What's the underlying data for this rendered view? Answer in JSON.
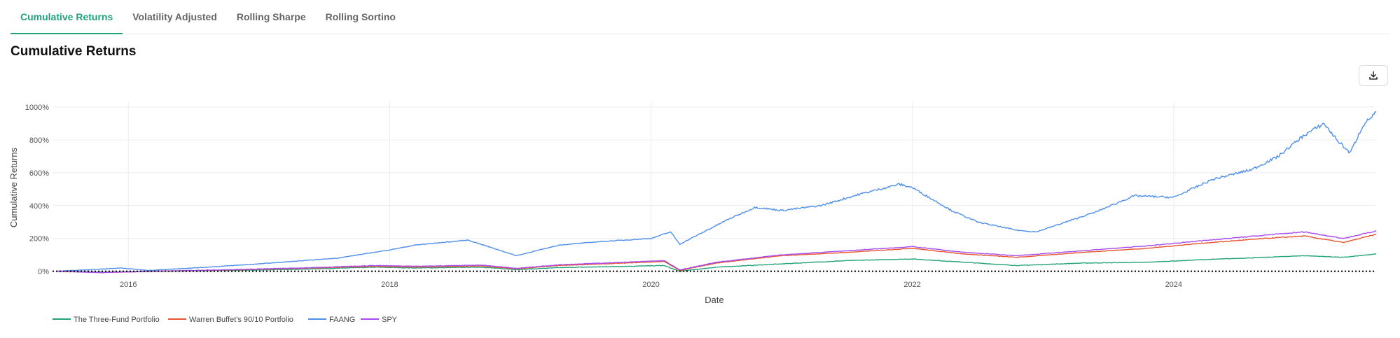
{
  "tabs": [
    {
      "label": "Cumulative Returns",
      "active": true
    },
    {
      "label": "Volatility Adjusted",
      "active": false
    },
    {
      "label": "Rolling Sharpe",
      "active": false
    },
    {
      "label": "Rolling Sortino",
      "active": false
    }
  ],
  "heading": "Cumulative Returns",
  "download_icon": "download-icon",
  "chart_data": {
    "type": "line",
    "title": "",
    "xlabel": "Date",
    "ylabel": "Cumulative Returns",
    "xlim": [
      2015.42,
      2025.55
    ],
    "ylim": [
      -10,
      1030
    ],
    "x_ticks": [
      {
        "value": 2016,
        "label": "2016"
      },
      {
        "value": 2018,
        "label": "2018"
      },
      {
        "value": 2020,
        "label": "2020"
      },
      {
        "value": 2022,
        "label": "2022"
      },
      {
        "value": 2024,
        "label": "2024"
      }
    ],
    "y_ticks": [
      {
        "value": 0,
        "label": "0%"
      },
      {
        "value": 200,
        "label": "200%"
      },
      {
        "value": 400,
        "label": "400%"
      },
      {
        "value": 600,
        "label": "600%"
      },
      {
        "value": 800,
        "label": "800%"
      },
      {
        "value": 1000,
        "label": "1000%"
      }
    ],
    "grid": true,
    "legend_position": "bottom-left",
    "series": [
      {
        "name": "The Three-Fund Portfolio",
        "color": "#22a37a",
        "points": [
          [
            2015.45,
            0
          ],
          [
            2015.8,
            -5
          ],
          [
            2016.2,
            0
          ],
          [
            2016.8,
            5
          ],
          [
            2017.3,
            12
          ],
          [
            2017.9,
            25
          ],
          [
            2018.2,
            20
          ],
          [
            2018.7,
            25
          ],
          [
            2018.97,
            10
          ],
          [
            2019.3,
            22
          ],
          [
            2019.8,
            30
          ],
          [
            2020.1,
            35
          ],
          [
            2020.22,
            0
          ],
          [
            2020.5,
            25
          ],
          [
            2021.0,
            45
          ],
          [
            2021.5,
            65
          ],
          [
            2022.0,
            75
          ],
          [
            2022.4,
            55
          ],
          [
            2022.8,
            35
          ],
          [
            2023.3,
            50
          ],
          [
            2023.8,
            55
          ],
          [
            2024.2,
            70
          ],
          [
            2024.7,
            85
          ],
          [
            2025.0,
            95
          ],
          [
            2025.3,
            85
          ],
          [
            2025.55,
            105
          ]
        ]
      },
      {
        "name": "Warren Buffet's 90/10 Portfolio",
        "color": "#e8552f",
        "points": [
          [
            2015.45,
            0
          ],
          [
            2015.8,
            -8
          ],
          [
            2016.2,
            0
          ],
          [
            2016.8,
            8
          ],
          [
            2017.3,
            18
          ],
          [
            2017.9,
            30
          ],
          [
            2018.2,
            25
          ],
          [
            2018.7,
            32
          ],
          [
            2018.97,
            15
          ],
          [
            2019.3,
            35
          ],
          [
            2019.8,
            50
          ],
          [
            2020.1,
            60
          ],
          [
            2020.22,
            5
          ],
          [
            2020.5,
            50
          ],
          [
            2021.0,
            95
          ],
          [
            2021.5,
            115
          ],
          [
            2022.0,
            140
          ],
          [
            2022.4,
            105
          ],
          [
            2022.8,
            85
          ],
          [
            2023.3,
            115
          ],
          [
            2023.8,
            140
          ],
          [
            2024.2,
            170
          ],
          [
            2024.7,
            200
          ],
          [
            2025.0,
            215
          ],
          [
            2025.3,
            175
          ],
          [
            2025.55,
            225
          ]
        ]
      },
      {
        "name": "FAANG",
        "color": "#4f8fea",
        "points": [
          [
            2015.45,
            0
          ],
          [
            2015.7,
            10
          ],
          [
            2015.95,
            20
          ],
          [
            2016.15,
            5
          ],
          [
            2016.6,
            25
          ],
          [
            2017.0,
            45
          ],
          [
            2017.6,
            80
          ],
          [
            2018.0,
            130
          ],
          [
            2018.2,
            160
          ],
          [
            2018.6,
            190
          ],
          [
            2018.97,
            95
          ],
          [
            2019.3,
            160
          ],
          [
            2019.6,
            180
          ],
          [
            2020.0,
            200
          ],
          [
            2020.15,
            240
          ],
          [
            2020.22,
            165
          ],
          [
            2020.6,
            320
          ],
          [
            2020.8,
            390
          ],
          [
            2021.0,
            370
          ],
          [
            2021.3,
            400
          ],
          [
            2021.6,
            470
          ],
          [
            2021.9,
            530
          ],
          [
            2022.0,
            510
          ],
          [
            2022.3,
            370
          ],
          [
            2022.5,
            300
          ],
          [
            2022.8,
            250
          ],
          [
            2022.95,
            240
          ],
          [
            2023.1,
            280
          ],
          [
            2023.4,
            360
          ],
          [
            2023.7,
            460
          ],
          [
            2024.0,
            450
          ],
          [
            2024.3,
            560
          ],
          [
            2024.6,
            620
          ],
          [
            2024.8,
            700
          ],
          [
            2025.0,
            830
          ],
          [
            2025.15,
            900
          ],
          [
            2025.25,
            800
          ],
          [
            2025.35,
            720
          ],
          [
            2025.45,
            890
          ],
          [
            2025.55,
            970
          ]
        ]
      },
      {
        "name": "SPY",
        "color": "#a64cf2",
        "points": [
          [
            2015.45,
            0
          ],
          [
            2015.8,
            -8
          ],
          [
            2016.2,
            0
          ],
          [
            2016.8,
            10
          ],
          [
            2017.3,
            20
          ],
          [
            2017.9,
            35
          ],
          [
            2018.2,
            30
          ],
          [
            2018.7,
            38
          ],
          [
            2018.97,
            18
          ],
          [
            2019.3,
            40
          ],
          [
            2019.8,
            55
          ],
          [
            2020.1,
            65
          ],
          [
            2020.22,
            8
          ],
          [
            2020.5,
            55
          ],
          [
            2021.0,
            100
          ],
          [
            2021.5,
            125
          ],
          [
            2022.0,
            150
          ],
          [
            2022.4,
            115
          ],
          [
            2022.8,
            95
          ],
          [
            2023.3,
            125
          ],
          [
            2023.8,
            155
          ],
          [
            2024.2,
            185
          ],
          [
            2024.7,
            220
          ],
          [
            2025.0,
            240
          ],
          [
            2025.3,
            200
          ],
          [
            2025.55,
            245
          ]
        ]
      }
    ],
    "reference_line": {
      "y": 0,
      "style": "dotted",
      "color": "#000000"
    }
  }
}
